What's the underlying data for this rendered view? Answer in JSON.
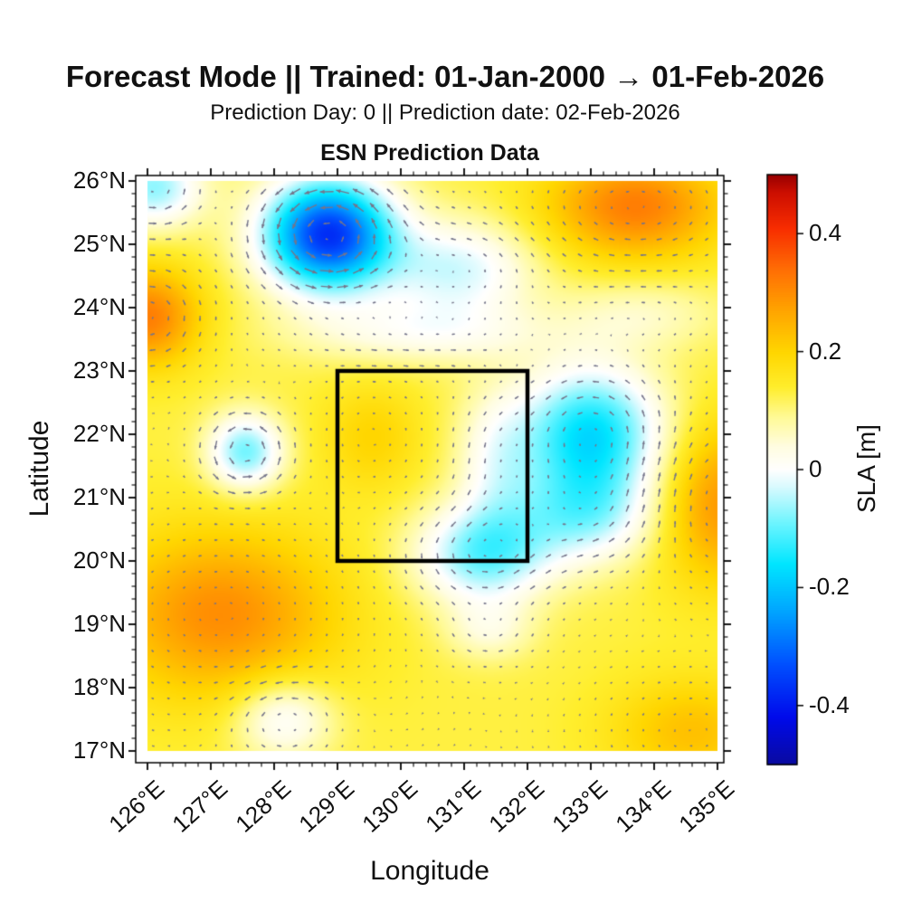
{
  "header": {
    "title": "Forecast Mode || Trained: 01-Jan-2000 → 01-Feb-2026",
    "subtitle": "Prediction Day: 0 || Prediction date: 02-Feb-2026"
  },
  "chart_data": {
    "type": "heatmap",
    "title": "ESN Prediction Data",
    "xlabel": "Longitude",
    "ylabel": "Latitude",
    "x_axis": {
      "min": 126,
      "max": 135,
      "minor_step": 0.2,
      "tick_values": [
        126,
        127,
        128,
        129,
        130,
        131,
        132,
        133,
        134,
        135
      ],
      "tick_labels": [
        "126°E",
        "127°E",
        "128°E",
        "129°E",
        "130°E",
        "131°E",
        "132°E",
        "133°E",
        "134°E",
        "135°E"
      ]
    },
    "y_axis": {
      "min": 17,
      "max": 26,
      "minor_step": 0.2,
      "tick_values": [
        26,
        25,
        24,
        23,
        22,
        21,
        20,
        19,
        18,
        17
      ],
      "tick_labels": [
        "26°N",
        "25°N",
        "24°N",
        "23°N",
        "22°N",
        "21°N",
        "20°N",
        "19°N",
        "18°N",
        "17°N"
      ]
    },
    "colorbar": {
      "label": "SLA [m]",
      "min": -0.5,
      "max": 0.5,
      "tick_values": [
        0.4,
        0.2,
        0,
        -0.2,
        -0.4
      ],
      "tick_labels": [
        "0.4",
        "0.2",
        "0",
        "-0.2",
        "-0.4"
      ]
    },
    "colormap_stops": [
      [
        -0.5,
        10,
        10,
        160
      ],
      [
        -0.42,
        0,
        10,
        235
      ],
      [
        -0.33,
        0,
        80,
        255
      ],
      [
        -0.24,
        0,
        165,
        255
      ],
      [
        -0.16,
        0,
        230,
        255
      ],
      [
        -0.09,
        110,
        245,
        255
      ],
      [
        -0.03,
        215,
        250,
        254
      ],
      [
        0.0,
        255,
        255,
        255
      ],
      [
        0.04,
        255,
        253,
        225
      ],
      [
        0.09,
        255,
        250,
        150
      ],
      [
        0.14,
        255,
        238,
        45
      ],
      [
        0.2,
        255,
        214,
        0
      ],
      [
        0.27,
        255,
        165,
        0
      ],
      [
        0.34,
        255,
        110,
        5
      ],
      [
        0.41,
        248,
        45,
        0
      ],
      [
        0.47,
        205,
        15,
        0
      ],
      [
        0.5,
        152,
        0,
        0
      ]
    ],
    "sla_field": {
      "background": 0.13,
      "gaussians": [
        {
          "lon": 128.85,
          "lat": 25.15,
          "amp": -0.5,
          "sx": 0.72,
          "sy": 0.62
        },
        {
          "lon": 130.9,
          "lat": 24.6,
          "amp": -0.16,
          "sx": 0.85,
          "sy": 0.55
        },
        {
          "lon": 126.1,
          "lat": 25.9,
          "amp": -0.2,
          "sx": 0.55,
          "sy": 0.45
        },
        {
          "lon": 133.7,
          "lat": 25.6,
          "amp": 0.19,
          "sx": 1.0,
          "sy": 0.6
        },
        {
          "lon": 126.0,
          "lat": 23.85,
          "amp": 0.19,
          "sx": 0.6,
          "sy": 0.55
        },
        {
          "lon": 127.55,
          "lat": 21.72,
          "amp": -0.22,
          "sx": 0.42,
          "sy": 0.42
        },
        {
          "lon": 129.55,
          "lat": 21.95,
          "amp": 0.07,
          "sx": 0.55,
          "sy": 0.6
        },
        {
          "lon": 133.0,
          "lat": 22.0,
          "amp": -0.3,
          "sx": 0.8,
          "sy": 0.75
        },
        {
          "lon": 131.3,
          "lat": 20.1,
          "amp": -0.22,
          "sx": 0.75,
          "sy": 0.55
        },
        {
          "lon": 132.9,
          "lat": 20.7,
          "amp": -0.16,
          "sx": 0.8,
          "sy": 0.55
        },
        {
          "lon": 131.4,
          "lat": 18.9,
          "amp": -0.08,
          "sx": 0.5,
          "sy": 0.35
        },
        {
          "lon": 127.15,
          "lat": 19.15,
          "amp": 0.17,
          "sx": 1.3,
          "sy": 0.95
        },
        {
          "lon": 135.05,
          "lat": 20.9,
          "amp": 0.16,
          "sx": 0.7,
          "sy": 0.9
        },
        {
          "lon": 134.6,
          "lat": 17.3,
          "amp": 0.1,
          "sx": 0.9,
          "sy": 0.6
        },
        {
          "lon": 128.15,
          "lat": 17.5,
          "amp": -0.14,
          "sx": 0.55,
          "sy": 0.45
        },
        {
          "lon": 130.3,
          "lat": 23.6,
          "amp": -0.1,
          "sx": 1.4,
          "sy": 0.35
        },
        {
          "lon": 131.5,
          "lat": 21.6,
          "amp": -0.1,
          "sx": 0.45,
          "sy": 0.8
        },
        {
          "lon": 133.8,
          "lat": 23.9,
          "amp": -0.07,
          "sx": 0.9,
          "sy": 0.4
        }
      ]
    },
    "quiver": {
      "grid_step_deg": 0.25,
      "color": "#75758a"
    },
    "highlight_box": {
      "lon_min": 129,
      "lon_max": 132,
      "lat_min": 20,
      "lat_max": 23
    }
  }
}
